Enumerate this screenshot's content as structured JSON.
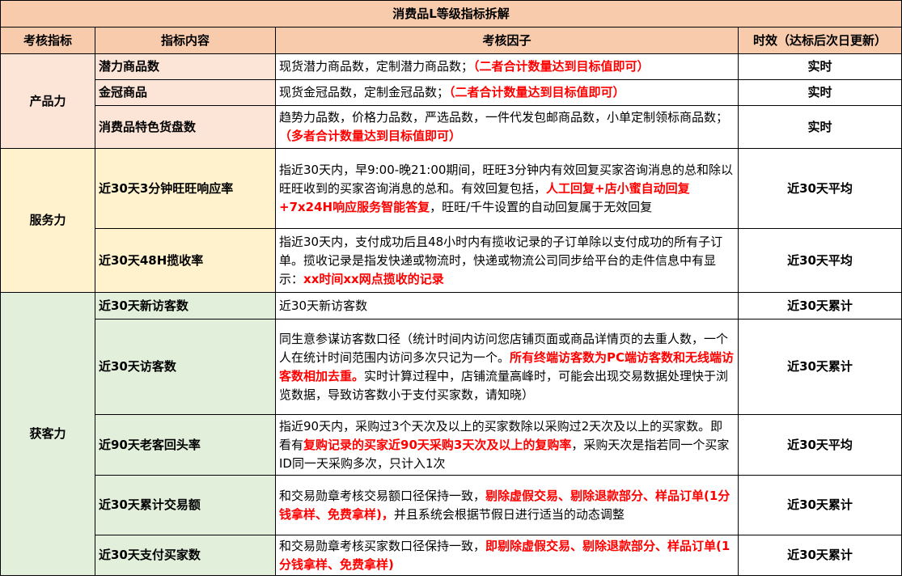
{
  "title": "消费品L等级指标拆解",
  "headers": [
    "考核指标",
    "指标内容",
    "考核因子",
    "时效（达标后次日更新）"
  ],
  "colors": {
    "header": "#F8CBAD",
    "product": "#FCE4D6",
    "service": "#FFF2CC",
    "acquisition": "#E2EFDA",
    "highlight": "#FF0000"
  },
  "sections": [
    {
      "category": "产品力",
      "rows": [
        {
          "name": "潜力商品数",
          "factor": [
            {
              "t": "现货潜力商品数，定制潜力商品数；"
            },
            {
              "t": "（二者合计数量达到目标值即可）",
              "red": true
            }
          ],
          "timing": "实时"
        },
        {
          "name": "金冠商品",
          "factor": [
            {
              "t": "现货金冠品数，定制金冠品数；"
            },
            {
              "t": "（二者合计数量达到目标值即可）",
              "red": true
            }
          ],
          "timing": "实时"
        },
        {
          "name": "消费品特色货盘数",
          "factor": [
            {
              "t": "趋势力品数，价格力品数，严选品数，一件代发包邮商品数，小单定制领标商品数；"
            },
            {
              "t": "（多者合计数量达到目标值即可）",
              "red": true
            }
          ],
          "timing": "实时"
        }
      ]
    },
    {
      "category": "服务力",
      "rows": [
        {
          "name": "近30天3分钟旺旺响应率",
          "factor": [
            {
              "t": "指近30天内，早9:00-晚21:00期间，旺旺3分钟内有效回复买家咨询消息的总和除以旺旺收到的买家咨询消息的总和。有效回复包括，"
            },
            {
              "t": "人工回复+店小蜜自动回复+7x24H响应服务智能答复",
              "red": true
            },
            {
              "t": "，旺旺/千牛设置的自动回复属于无效回复"
            }
          ],
          "timing": "近30天平均"
        },
        {
          "name": "近30天48H揽收率",
          "factor": [
            {
              "t": "指近30天内，支付成功后且48小时内有揽收记录的子订单除以支付成功的所有子订单。揽收记录是指发快递或物流时，快递或物流公司同步给平台的走件信息中有显示："
            },
            {
              "t": "xx时间xx网点揽收的记录",
              "red": true
            }
          ],
          "timing": "近30天平均"
        }
      ]
    },
    {
      "category": "获客力",
      "rows": [
        {
          "name": "近30天新访客数",
          "factor": [
            {
              "t": "近30天新访客数"
            }
          ],
          "timing": "近30天累计"
        },
        {
          "name": "近30天访客数",
          "factor": [
            {
              "t": "同生意参谋访客数口径（统计时间内访问您店铺页面或商品详情页的去重人数，一个人在统计时间范围内访问多次只记为一个。"
            },
            {
              "t": "所有终端访客数为PC端访客数和无线端访客数相加去重。",
              "red": true
            },
            {
              "t": "实时计算过程中，店铺流量高峰时，可能会出现交易数据处理快于浏览数据，导致访客数小于支付买家数，请知晓）"
            }
          ],
          "timing": "近30天累计"
        },
        {
          "name": "近90天老客回头率",
          "factor": [
            {
              "t": "指近90天内，采购过3个天次及以上的买家数除以采购过2天次及以上的买家数。即看有"
            },
            {
              "t": "复购记录的买家近90天采购3天次及以上的复购率",
              "red": true
            },
            {
              "t": "，采购天次是指若同一个买家ID同一天采购多次，只计入1次"
            }
          ],
          "timing": "近30天平均"
        },
        {
          "name": "近30天累计交易额",
          "factor": [
            {
              "t": "和交易勋章考核交易额口径保持一致，"
            },
            {
              "t": "剔除虚假交易、剔除退款部分、样品订单(1分钱拿样、免费拿样)，",
              "red": true
            },
            {
              "t": "并且系统会根据节假日进行适当的动态调整"
            }
          ],
          "timing": "近30天累计"
        },
        {
          "name": "近30天支付买家数",
          "factor": [
            {
              "t": "和交易勋章考核买家数口径保持一致，"
            },
            {
              "t": "即剔除虚假交易、剔除退款部分、样品订单(1分钱拿样、免费拿样)",
              "red": true
            }
          ],
          "timing": "近30天累计"
        }
      ]
    }
  ]
}
